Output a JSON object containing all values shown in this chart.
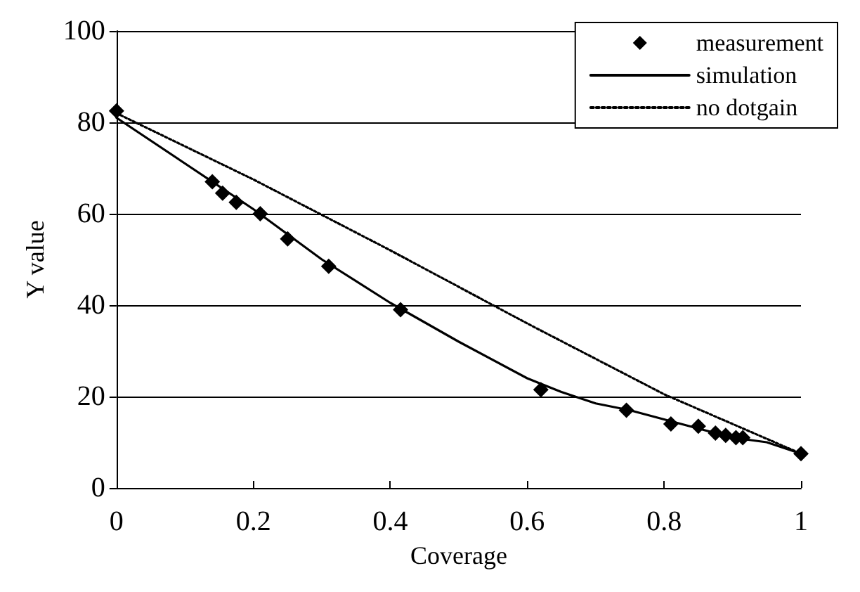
{
  "chart_data": {
    "type": "line",
    "xlabel": "Coverage",
    "ylabel": "Y value",
    "xlim": [
      0,
      1
    ],
    "xticks": [
      0,
      0.2,
      0.4,
      0.6,
      0.8,
      1
    ],
    "ylim": [
      0,
      100
    ],
    "yticks": [
      0,
      20,
      40,
      60,
      80,
      100
    ],
    "grid": "y",
    "legend": "top right",
    "series": [
      {
        "name": "measurement",
        "type": "scatter",
        "marker": "diamond",
        "color": "#000000",
        "x": [
          0,
          0.14,
          0.155,
          0.175,
          0.21,
          0.25,
          0.31,
          0.415,
          0.62,
          0.745,
          0.81,
          0.85,
          0.875,
          0.89,
          0.905,
          0.915,
          1
        ],
        "values": [
          82.5,
          67,
          64.5,
          62.5,
          60,
          54.5,
          48.5,
          39,
          21.5,
          17,
          14,
          13.5,
          12,
          11.5,
          11,
          11,
          7.5
        ]
      },
      {
        "name": "simulation",
        "type": "line",
        "line_style": "solid",
        "marker": "none",
        "color": "#000000",
        "x": [
          0,
          0.1,
          0.2,
          0.3,
          0.4,
          0.5,
          0.6,
          0.65,
          0.7,
          0.75,
          0.8,
          0.85,
          0.9,
          0.95,
          1
        ],
        "values": [
          81,
          71,
          61,
          50,
          40.5,
          32,
          24,
          21,
          18.5,
          17,
          15,
          13,
          11,
          10,
          7.5
        ]
      },
      {
        "name": "no dotgain",
        "type": "line",
        "line_style": "dotted",
        "marker": "none",
        "color": "#000000",
        "x": [
          0,
          0.2,
          0.4,
          0.6,
          0.8,
          1
        ],
        "values": [
          82,
          67.5,
          52,
          36,
          20.5,
          7.5
        ]
      }
    ]
  }
}
